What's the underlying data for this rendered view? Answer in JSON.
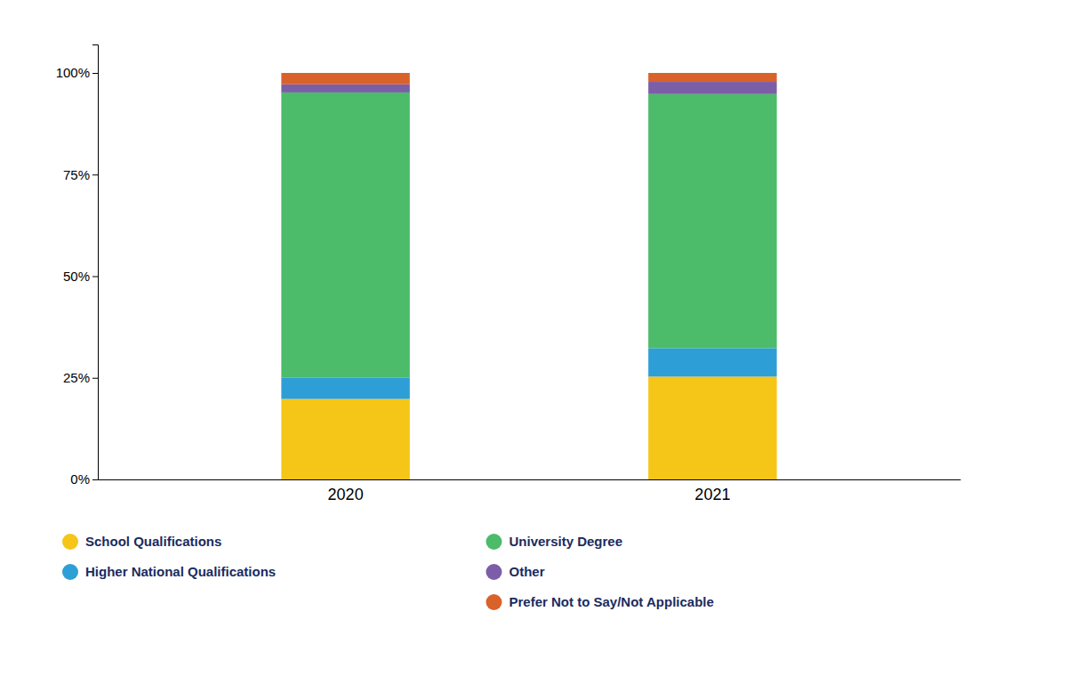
{
  "chart_data": {
    "type": "bar",
    "stacked": true,
    "categories": [
      "2020",
      "2021"
    ],
    "series": [
      {
        "name": "School Qualifications",
        "color": "#F5C518",
        "values": [
          19.8,
          25.3
        ]
      },
      {
        "name": "Higher National Qualifications",
        "color": "#2E9ED6",
        "values": [
          5.2,
          7.0
        ]
      },
      {
        "name": "University Degree",
        "color": "#4CBB6A",
        "values": [
          70.2,
          62.5
        ]
      },
      {
        "name": "Other",
        "color": "#7B5EA7",
        "values": [
          2.0,
          3.0
        ]
      },
      {
        "name": "Prefer Not to Say/Not Applicable",
        "color": "#D9622B",
        "values": [
          2.8,
          2.2
        ]
      }
    ],
    "ylim": [
      0,
      107
    ],
    "yticks": [
      {
        "value": 0,
        "label": "0%"
      },
      {
        "value": 25,
        "label": "25%"
      },
      {
        "value": 50,
        "label": "50%"
      },
      {
        "value": 75,
        "label": "75%"
      },
      {
        "value": 100,
        "label": "100%"
      }
    ],
    "grid": false,
    "legend": "bottom"
  }
}
